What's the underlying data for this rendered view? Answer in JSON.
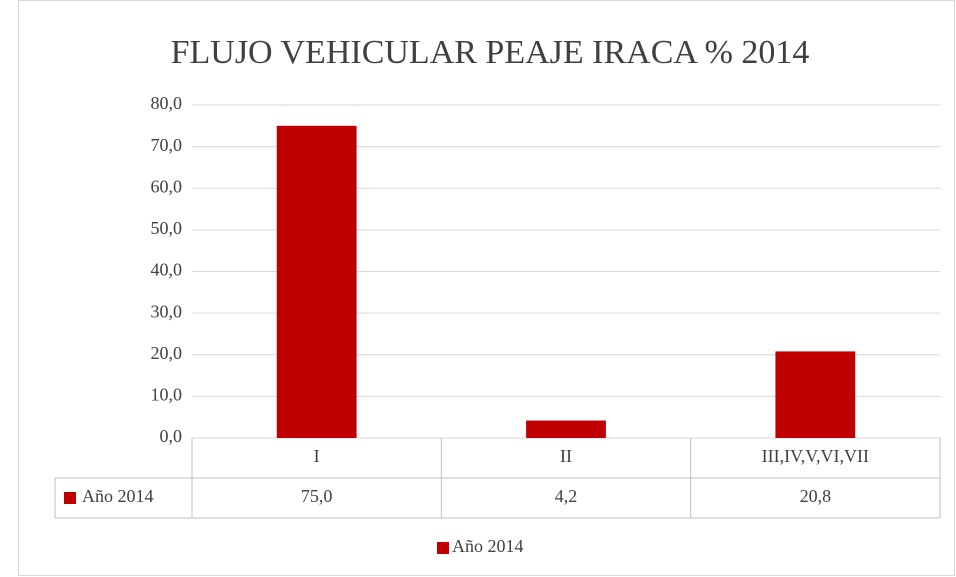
{
  "chart_data": {
    "type": "bar",
    "title": "FLUJO VEHICULAR PEAJE IRACA % 2014",
    "categories": [
      "I",
      "II",
      "III,IV,V,VI,VII"
    ],
    "series": [
      {
        "name": "Año 2014",
        "color": "#c00000",
        "values": [
          75.0,
          4.2,
          20.8
        ],
        "value_labels": [
          "75,0",
          "4,2",
          "20,8"
        ]
      }
    ],
    "ylim": [
      0,
      80
    ],
    "yticks": [
      {
        "value": 0,
        "label": "0,0"
      },
      {
        "value": 10,
        "label": "10,0"
      },
      {
        "value": 20,
        "label": "20,0"
      },
      {
        "value": 30,
        "label": "30,0"
      },
      {
        "value": 40,
        "label": "40,0"
      },
      {
        "value": 50,
        "label": "50,0"
      },
      {
        "value": 60,
        "label": "60,0"
      },
      {
        "value": 70,
        "label": "70,0"
      },
      {
        "value": 80,
        "label": "80,0"
      }
    ],
    "grid": true,
    "data_table": true,
    "legend": "bottom"
  }
}
